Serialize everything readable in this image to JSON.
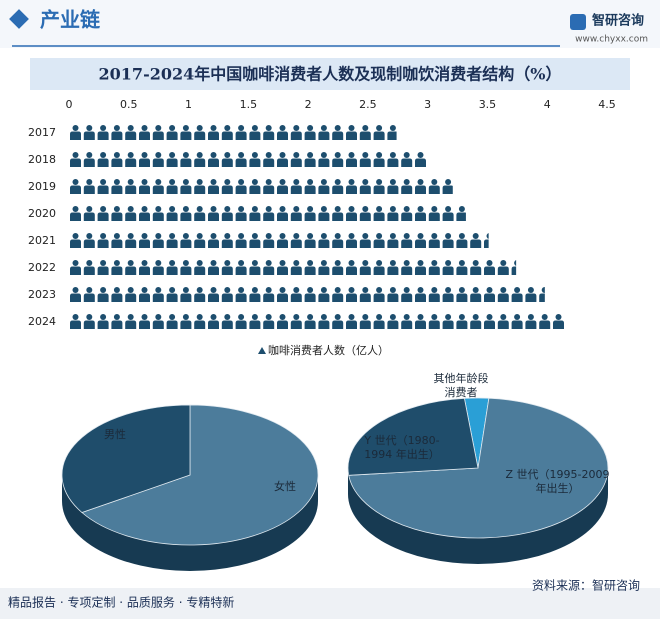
{
  "header": {
    "section": "产业链",
    "brand": "智研咨询",
    "website": "www.chyxx.com"
  },
  "title": "2017-2024年中国咖啡消费者人数及现制咖饮消费者结构（%）",
  "chart_data": [
    {
      "type": "pictograph",
      "categories": [
        "2017",
        "2018",
        "2019",
        "2020",
        "2021",
        "2022",
        "2023",
        "2024"
      ],
      "series": [
        {
          "name": "咖啡消费者人数（亿人）",
          "color": "#1d4e6e",
          "values": [
            2.74,
            3.0,
            3.21,
            3.32,
            3.51,
            3.74,
            3.98,
            4.16
          ]
        }
      ],
      "xlim": [
        0,
        4.5
      ],
      "xticks": [
        0,
        0.5,
        1,
        1.5,
        2,
        2.5,
        3,
        3.5,
        4,
        4.5
      ]
    },
    {
      "type": "pie",
      "categories": [
        "女性",
        "男性"
      ],
      "values": [
        66,
        34
      ],
      "colors": [
        "#4c7c9b",
        "#1f4d6b"
      ]
    },
    {
      "type": "pie",
      "categories": [
        "其他年龄段消费者",
        "Z 世代（1995-2009 年出生）",
        "Y 世代（1980-1994 年出生）"
      ],
      "values": [
        3,
        72,
        25
      ],
      "colors": [
        "#2a9fd6",
        "#4c7c9b",
        "#1f4d6b"
      ]
    }
  ],
  "source": "资料来源：智研咨询",
  "footer": "精品报告 · 专项定制 · 品质服务 · 专精特新"
}
